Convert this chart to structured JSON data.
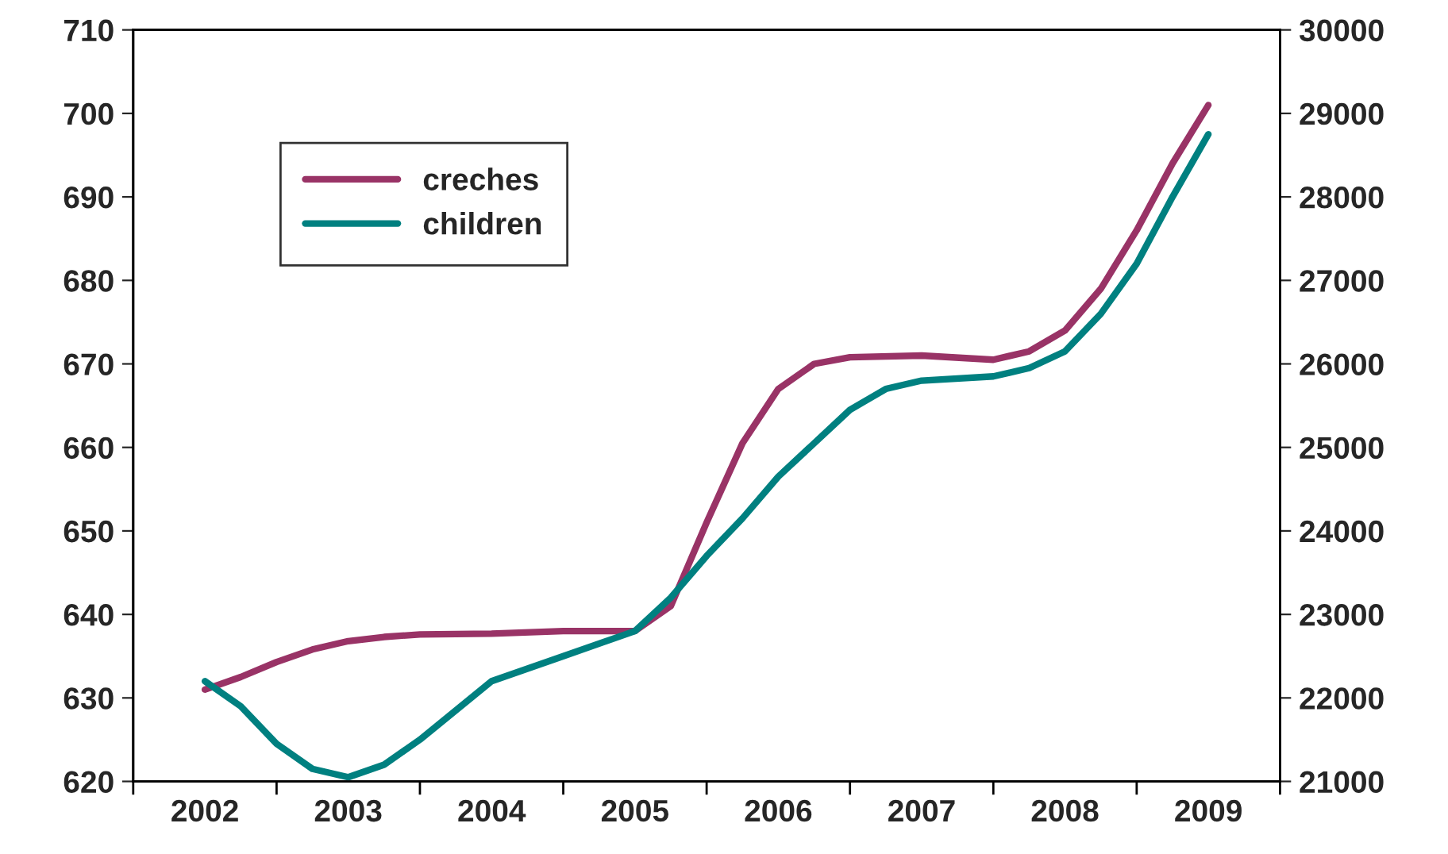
{
  "chart_data": {
    "type": "line",
    "xlim": [
      2002,
      2010
    ],
    "xticks": [
      {
        "value": 2002,
        "label": null
      },
      {
        "value": 2002.5,
        "label": "2002"
      },
      {
        "value": 2003,
        "label": null
      },
      {
        "value": 2003.5,
        "label": "2003"
      },
      {
        "value": 2004,
        "label": null
      },
      {
        "value": 2004.5,
        "label": "2004"
      },
      {
        "value": 2005,
        "label": null
      },
      {
        "value": 2005.5,
        "label": "2005"
      },
      {
        "value": 2006,
        "label": null
      },
      {
        "value": 2006.5,
        "label": "2006"
      },
      {
        "value": 2007,
        "label": null
      },
      {
        "value": 2007.5,
        "label": "2007"
      },
      {
        "value": 2008,
        "label": null
      },
      {
        "value": 2008.5,
        "label": "2008"
      },
      {
        "value": 2009,
        "label": null
      },
      {
        "value": 2009.5,
        "label": "2009"
      },
      {
        "value": 2010,
        "label": null
      }
    ],
    "ylim": [
      620,
      710
    ],
    "yticks": [
      620,
      630,
      640,
      650,
      660,
      670,
      680,
      690,
      700,
      710
    ],
    "y2lim": [
      21000,
      30000
    ],
    "y2ticks": [
      21000,
      22000,
      23000,
      24000,
      25000,
      26000,
      27000,
      28000,
      29000,
      30000
    ],
    "legend": "top left",
    "grid": false,
    "marker": "none",
    "line_style": "solid",
    "series": [
      {
        "name": "creches",
        "color": "#993366",
        "x": [
          2002.5,
          2002.75,
          2003.0,
          2003.25,
          2003.5,
          2003.75,
          2004.0,
          2004.5,
          2005.0,
          2005.5,
          2005.75,
          2006.0,
          2006.25,
          2006.5,
          2006.75,
          2007.0,
          2007.5,
          2008.0,
          2008.25,
          2008.5,
          2008.75,
          2009.0,
          2009.25,
          2009.5
        ],
        "values": [
          631,
          632.5,
          634.3,
          635.8,
          636.8,
          637.3,
          637.6,
          637.7,
          638,
          638,
          641,
          651,
          660.5,
          667,
          670,
          670.8,
          671,
          670.5,
          671.5,
          674,
          679,
          686,
          694,
          701
        ]
      },
      {
        "name": "children",
        "color": "#008080",
        "axis": "y2",
        "x": [
          2002.5,
          2002.75,
          2003.0,
          2003.25,
          2003.5,
          2003.75,
          2004.0,
          2004.5,
          2005.0,
          2005.5,
          2005.75,
          2006.0,
          2006.25,
          2006.5,
          2006.75,
          2007.0,
          2007.25,
          2007.5,
          2008.0,
          2008.25,
          2008.5,
          2008.75,
          2009.0,
          2009.25,
          2009.5
        ],
        "values": [
          22200,
          21900,
          21450,
          21150,
          21050,
          21200,
          21500,
          22200,
          22500,
          22800,
          23200,
          23700,
          24150,
          24650,
          25050,
          25450,
          25700,
          25800,
          25850,
          25950,
          26150,
          26600,
          27200,
          28000,
          28750
        ]
      }
    ]
  }
}
